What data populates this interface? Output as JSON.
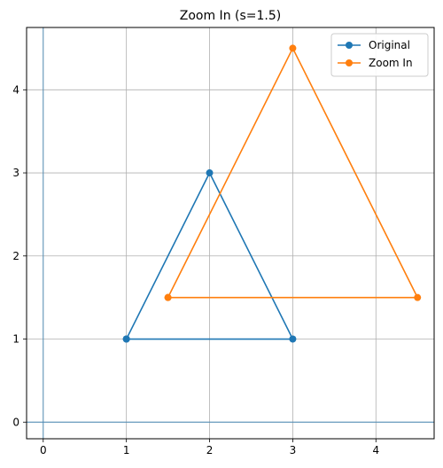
{
  "chart_data": {
    "type": "line",
    "title": "Zoom In (s=1.5)",
    "xlabel": "",
    "ylabel": "",
    "xlim": [
      -0.2,
      4.7
    ],
    "ylim": [
      -0.2,
      4.75
    ],
    "xticks": [
      0,
      1,
      2,
      3,
      4
    ],
    "yticks": [
      0,
      1,
      2,
      3,
      4
    ],
    "grid": true,
    "axis_lines": {
      "x": 0,
      "y": 0
    },
    "legend_position": "top-right",
    "series": [
      {
        "name": "Original",
        "color": "#1f77b4",
        "x": [
          1,
          3,
          2,
          1
        ],
        "y": [
          1,
          1,
          3,
          1
        ]
      },
      {
        "name": "Zoom In",
        "color": "#ff7f0e",
        "x": [
          1.5,
          4.5,
          3,
          1.5
        ],
        "y": [
          1.5,
          1.5,
          4.5,
          1.5
        ]
      }
    ]
  }
}
